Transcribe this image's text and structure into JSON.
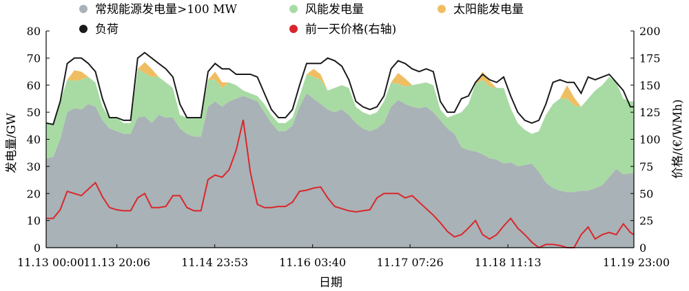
{
  "chart_data": {
    "type": "area",
    "title": "",
    "xlabel": "日期",
    "ylabel_left": "发电量/GW",
    "ylabel_right": "价格/(€/WMh)",
    "ylim_left": [
      0,
      80
    ],
    "ylim_right": [
      0,
      200
    ],
    "y_ticks_left": [
      "0",
      "10",
      "20",
      "30",
      "40",
      "50",
      "60",
      "70",
      "80"
    ],
    "y_ticks_right": [
      "0",
      "25",
      "50",
      "75",
      "100",
      "125",
      "150",
      "175",
      "200"
    ],
    "x_tick_labels": [
      "11.13 00:00",
      "11.13 20:06",
      "11.14 23:53",
      "11.16 03:40",
      "11.17 07:26",
      "11.18 11:13",
      "11.19 23:00"
    ],
    "x_tick_hours": [
      0,
      20.1,
      47.9,
      75.7,
      103.4,
      131.2,
      167
    ],
    "x_hours": [
      0,
      2,
      4,
      6,
      8,
      10,
      12,
      14,
      16,
      18,
      20,
      22,
      24,
      26,
      28,
      30,
      32,
      34,
      36,
      38,
      40,
      42,
      44,
      46,
      48,
      50,
      52,
      54,
      56,
      58,
      60,
      62,
      64,
      66,
      68,
      70,
      72,
      74,
      76,
      78,
      80,
      82,
      84,
      86,
      88,
      90,
      92,
      94,
      96,
      98,
      100,
      102,
      104,
      106,
      108,
      110,
      112,
      114,
      116,
      118,
      120,
      122,
      124,
      126,
      128,
      130,
      132,
      134,
      136,
      138,
      140,
      142,
      144,
      146,
      148,
      150,
      152,
      154,
      156,
      158,
      160,
      162,
      164,
      166,
      167
    ],
    "series": [
      {
        "name": "常规能源发电量>100 MW",
        "axis": "left",
        "color": "#a9b2b6",
        "values": [
          33,
          33.5,
          40,
          50,
          51.5,
          51,
          53,
          52,
          47,
          44,
          43,
          42,
          42,
          48,
          48.5,
          46,
          49,
          48,
          48,
          44,
          42,
          41,
          41,
          52,
          54,
          52,
          54,
          55,
          56,
          55,
          54,
          50,
          46,
          43,
          43,
          45,
          52,
          57,
          55,
          53,
          51,
          50,
          51,
          49,
          46,
          44,
          43,
          44,
          46,
          52,
          54.5,
          53,
          52,
          51.5,
          52,
          50,
          47,
          44,
          42,
          37,
          36,
          35.5,
          34.5,
          33,
          32.5,
          31,
          31.5,
          30,
          30.5,
          31,
          28,
          24,
          22,
          21,
          20.5,
          20.5,
          21,
          21,
          22,
          23,
          26,
          29,
          27,
          27.5,
          27.5
        ]
      },
      {
        "name": "风能发电量",
        "axis": "left",
        "color": "#a8dba4",
        "values": [
          13,
          12,
          14,
          12,
          10,
          11,
          10,
          9,
          5,
          4,
          5,
          4,
          4,
          18,
          16,
          17,
          14,
          13,
          11,
          5,
          6,
          7,
          7,
          10,
          8,
          7,
          7,
          5,
          2,
          2,
          2,
          3,
          3,
          3,
          3,
          3,
          4,
          7,
          8,
          9,
          7,
          9,
          9,
          10,
          6,
          6,
          6,
          6,
          8,
          9,
          6,
          6.5,
          8,
          9,
          9,
          10,
          4,
          4,
          7,
          13,
          17,
          25,
          27.5,
          26.5,
          26.5,
          28,
          20,
          16,
          13,
          11,
          15,
          25,
          31,
          34,
          34.5,
          32,
          31,
          34,
          36,
          37,
          37,
          32,
          28,
          26.5,
          26.5
        ]
      },
      {
        "name": "太阳能发电量",
        "axis": "left",
        "color": "#f0be62",
        "values": [
          0,
          0,
          0,
          0,
          4,
          3,
          0,
          0,
          0,
          0,
          0,
          0,
          0,
          0,
          4,
          3,
          0,
          0,
          0,
          0,
          0,
          0,
          0,
          0,
          3,
          2,
          0,
          0,
          0,
          0,
          0,
          0,
          0,
          0,
          0,
          0,
          0,
          0,
          3,
          2,
          0,
          0,
          0,
          0,
          0,
          0,
          0,
          0,
          0,
          0,
          4,
          3,
          0,
          0,
          0,
          0,
          0,
          0,
          0,
          0,
          0,
          0,
          3,
          2,
          0,
          0,
          0,
          0,
          0,
          0,
          0,
          0,
          0,
          0,
          5,
          3,
          0,
          0,
          0,
          0,
          0,
          0,
          0,
          0,
          0
        ]
      },
      {
        "name": "负荷",
        "axis": "left",
        "color": "#1a1a1a",
        "values": [
          46,
          45.5,
          54,
          68,
          70,
          70,
          68,
          65,
          55,
          48,
          48,
          47,
          47,
          70,
          72,
          70,
          68,
          66,
          63,
          53,
          48,
          48,
          48,
          65,
          68,
          66,
          66,
          64,
          64,
          64,
          63,
          57,
          51,
          48,
          48,
          51,
          60,
          68,
          68,
          68,
          70,
          69,
          67,
          62,
          54,
          52,
          51,
          52,
          56,
          66,
          69,
          68,
          66,
          65,
          66,
          65,
          54,
          50,
          50,
          55,
          56,
          61,
          64,
          62,
          61,
          63,
          56,
          50,
          47,
          46,
          47,
          53,
          61,
          62,
          61,
          61,
          57,
          63,
          62,
          63,
          64,
          61,
          58,
          52,
          52
        ]
      },
      {
        "name": "前一天价格(右轴)",
        "axis": "right",
        "color": "#d9262c",
        "values": [
          27,
          27,
          35,
          52,
          50,
          48,
          54,
          60,
          47,
          37,
          35,
          34,
          34,
          46,
          50,
          37,
          37,
          38,
          48,
          48,
          37,
          34,
          34,
          63,
          67,
          65,
          72,
          90,
          118,
          70,
          40,
          37,
          37,
          38,
          38,
          42,
          52,
          53,
          55,
          56,
          46,
          38,
          36,
          34,
          33,
          34,
          35,
          46,
          50,
          50,
          50,
          46,
          48,
          42,
          36,
          30,
          23,
          15,
          10,
          12,
          18,
          25,
          12,
          8,
          12,
          20,
          27,
          18,
          12,
          5,
          0,
          3,
          3,
          2,
          0,
          0,
          12,
          19,
          8,
          12,
          14,
          12,
          22,
          14,
          12
        ]
      }
    ],
    "legend_position": "top",
    "grid": false
  }
}
